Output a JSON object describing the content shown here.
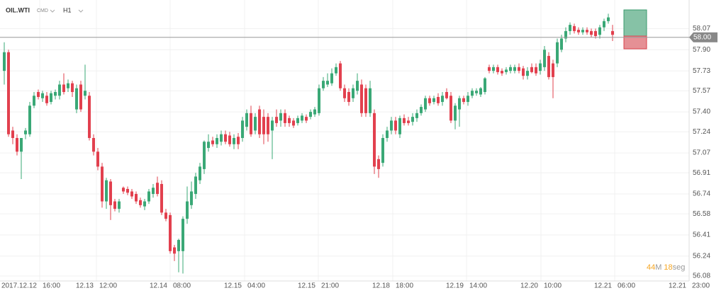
{
  "header": {
    "symbol": "OIL.WTI",
    "market": "CMD",
    "timeframe": "H1"
  },
  "countdown": {
    "minutes": 44,
    "minutes_unit": "M",
    "seconds": 18,
    "seconds_unit": "seg"
  },
  "chart_data": {
    "type": "candlestick",
    "up_color": "#3aa876",
    "down_color": "#e2404e",
    "ylim": [
      56.04,
      58.3
    ],
    "yticks": [
      58.07,
      {
        "value": 57.9,
        "label": "57.90"
      },
      57.73,
      57.57,
      {
        "value": 57.4,
        "label": "57.40"
      },
      57.24,
      57.07,
      56.91,
      56.74,
      56.58,
      56.41,
      56.24,
      56.08
    ],
    "grid": true,
    "current_price": {
      "value": 58,
      "label": "58.00"
    },
    "x_labels": [
      {
        "date": "2017.12.12",
        "time": "16:00"
      },
      {
        "date": "12.13",
        "time": "12:00"
      },
      {
        "date": "12.14",
        "time": "08:00"
      },
      {
        "date": "12.15",
        "time": "04:00"
      },
      {
        "date": "12.15",
        "time": "21:00"
      },
      {
        "date": "12.18",
        "time": "18:00"
      },
      {
        "date": "12.19",
        "time": "14:00"
      },
      {
        "date": "12.20",
        "time": "10:00"
      },
      {
        "date": "12.21",
        "time": "06:00"
      },
      {
        "date": "12.21",
        "time": "23:00"
      }
    ],
    "ohlc": [
      [
        57.73,
        57.96,
        57.62,
        57.88
      ],
      [
        57.88,
        57.9,
        57.2,
        57.22
      ],
      [
        57.25,
        57.28,
        57.14,
        57.19
      ],
      [
        57.19,
        57.22,
        57.05,
        57.08
      ],
      [
        57.08,
        57.19,
        56.86,
        57.19
      ],
      [
        57.22,
        57.27,
        57.18,
        57.25
      ],
      [
        57.22,
        57.48,
        57.2,
        57.45
      ],
      [
        57.45,
        57.56,
        57.43,
        57.53
      ],
      [
        57.56,
        57.58,
        57.5,
        57.52
      ],
      [
        57.51,
        57.57,
        57.48,
        57.55
      ],
      [
        57.53,
        57.56,
        57.45,
        57.47
      ],
      [
        57.48,
        57.57,
        57.46,
        57.55
      ],
      [
        57.53,
        57.58,
        57.5,
        57.56
      ],
      [
        57.53,
        57.65,
        57.5,
        57.62
      ],
      [
        57.62,
        57.71,
        57.54,
        57.56
      ],
      [
        57.59,
        57.66,
        57.56,
        57.63
      ],
      [
        57.63,
        57.65,
        57.52,
        57.56
      ],
      [
        57.42,
        57.62,
        57.39,
        57.59
      ],
      [
        57.62,
        57.65,
        57.4,
        57.42
      ],
      [
        57.53,
        57.78,
        57.5,
        57.57
      ],
      [
        57.53,
        57.56,
        57.17,
        57.19
      ],
      [
        57.19,
        57.22,
        57.05,
        57.08
      ],
      [
        57.08,
        57.11,
        56.93,
        56.96
      ],
      [
        56.96,
        56.99,
        56.63,
        56.68
      ],
      [
        56.68,
        56.87,
        56.62,
        56.85
      ],
      [
        56.84,
        56.86,
        56.53,
        56.65
      ],
      [
        56.68,
        56.7,
        56.6,
        56.62
      ],
      [
        56.62,
        56.7,
        56.59,
        56.68
      ],
      [
        56.79,
        56.8,
        56.74,
        56.76
      ],
      [
        56.78,
        56.8,
        56.73,
        56.75
      ],
      [
        56.76,
        56.78,
        56.7,
        56.72
      ],
      [
        56.74,
        56.76,
        56.66,
        56.68
      ],
      [
        56.69,
        56.71,
        56.63,
        56.65
      ],
      [
        56.64,
        56.7,
        56.61,
        56.68
      ],
      [
        56.68,
        56.78,
        56.66,
        56.76
      ],
      [
        56.74,
        56.82,
        56.71,
        56.79
      ],
      [
        56.83,
        56.88,
        56.72,
        56.74
      ],
      [
        56.82,
        56.85,
        56.57,
        56.59
      ],
      [
        56.59,
        56.62,
        56.52,
        56.54
      ],
      [
        56.57,
        56.59,
        56.26,
        56.28
      ],
      [
        56.31,
        56.33,
        56.2,
        56.26
      ],
      [
        56.28,
        56.38,
        56.11,
        56.37
      ],
      [
        56.28,
        56.56,
        56.1,
        56.54
      ],
      [
        56.54,
        56.8,
        56.5,
        56.68
      ],
      [
        56.65,
        56.84,
        56.62,
        56.76
      ],
      [
        56.74,
        56.91,
        56.7,
        56.88
      ],
      [
        56.85,
        56.99,
        56.82,
        56.96
      ],
      [
        56.94,
        57.17,
        56.9,
        57.16
      ],
      [
        57.11,
        57.22,
        57.08,
        57.16
      ],
      [
        57.17,
        57.2,
        57.12,
        57.14
      ],
      [
        57.14,
        57.22,
        57.11,
        57.19
      ],
      [
        57.16,
        57.25,
        57.13,
        57.22
      ],
      [
        57.22,
        57.25,
        57.14,
        57.16
      ],
      [
        57.21,
        57.24,
        57.12,
        57.14
      ],
      [
        57.14,
        57.22,
        57.1,
        57.19
      ],
      [
        57.2,
        57.23,
        57.1,
        57.14
      ],
      [
        57.19,
        57.36,
        57.16,
        57.33
      ],
      [
        57.28,
        57.42,
        57.25,
        57.39
      ],
      [
        57.39,
        57.45,
        57.2,
        57.22
      ],
      [
        57.25,
        57.39,
        57.22,
        57.36
      ],
      [
        57.42,
        57.45,
        57.19,
        57.22
      ],
      [
        57.36,
        57.42,
        57.14,
        57.22
      ],
      [
        57.36,
        57.39,
        57.16,
        57.22
      ],
      [
        57.25,
        57.36,
        57.02,
        57.33
      ],
      [
        57.36,
        57.42,
        57.28,
        57.31
      ],
      [
        57.33,
        57.42,
        57.28,
        57.39
      ],
      [
        57.39,
        57.42,
        57.28,
        57.31
      ],
      [
        57.35,
        57.37,
        57.28,
        57.31
      ],
      [
        57.33,
        57.35,
        57.27,
        57.29
      ],
      [
        57.31,
        57.37,
        57.29,
        57.35
      ],
      [
        57.33,
        57.39,
        57.31,
        57.37
      ],
      [
        57.36,
        57.38,
        57.31,
        57.33
      ],
      [
        57.36,
        57.42,
        57.34,
        57.4
      ],
      [
        57.38,
        57.44,
        57.36,
        57.42
      ],
      [
        57.39,
        57.62,
        57.37,
        57.59
      ],
      [
        57.59,
        57.68,
        57.57,
        57.65
      ],
      [
        57.62,
        57.71,
        57.6,
        57.65
      ],
      [
        57.63,
        57.75,
        57.61,
        57.71
      ],
      [
        57.71,
        57.79,
        57.69,
        57.76
      ],
      [
        57.79,
        57.81,
        57.57,
        57.59
      ],
      [
        57.59,
        57.62,
        57.48,
        57.51
      ],
      [
        57.56,
        57.59,
        57.45,
        57.48
      ],
      [
        57.51,
        57.62,
        57.48,
        57.59
      ],
      [
        57.57,
        57.71,
        57.54,
        57.65
      ],
      [
        57.62,
        57.66,
        57.36,
        57.39
      ],
      [
        57.59,
        57.62,
        57.36,
        57.39
      ],
      [
        57.39,
        57.65,
        57.36,
        57.59
      ],
      [
        57.39,
        57.42,
        56.9,
        56.96
      ],
      [
        57.02,
        57.05,
        56.87,
        56.94
      ],
      [
        56.99,
        57.22,
        56.96,
        57.19
      ],
      [
        57.19,
        57.28,
        57.16,
        57.25
      ],
      [
        57.25,
        57.36,
        57.22,
        57.33
      ],
      [
        57.33,
        57.36,
        57.22,
        57.25
      ],
      [
        57.22,
        57.37,
        57.19,
        57.35
      ],
      [
        57.35,
        57.38,
        57.29,
        57.31
      ],
      [
        57.33,
        57.36,
        57.29,
        57.31
      ],
      [
        57.32,
        57.39,
        57.29,
        57.36
      ],
      [
        57.35,
        57.42,
        57.32,
        57.39
      ],
      [
        57.39,
        57.46,
        57.37,
        57.44
      ],
      [
        57.42,
        57.53,
        57.4,
        57.51
      ],
      [
        57.51,
        57.53,
        57.45,
        57.47
      ],
      [
        57.48,
        57.53,
        57.46,
        57.51
      ],
      [
        57.52,
        57.55,
        57.45,
        57.47
      ],
      [
        57.48,
        57.56,
        57.45,
        57.53
      ],
      [
        57.56,
        57.59,
        57.5,
        57.51
      ],
      [
        57.53,
        57.56,
        57.31,
        57.33
      ],
      [
        57.33,
        57.47,
        57.26,
        57.45
      ],
      [
        57.42,
        57.53,
        57.28,
        57.51
      ],
      [
        57.51,
        57.53,
        57.46,
        57.48
      ],
      [
        57.48,
        57.56,
        57.45,
        57.53
      ],
      [
        57.53,
        57.59,
        57.51,
        57.57
      ],
      [
        57.55,
        57.59,
        57.53,
        57.57
      ],
      [
        57.54,
        57.6,
        57.52,
        57.59
      ],
      [
        57.56,
        57.68,
        57.54,
        57.67
      ],
      [
        57.76,
        57.78,
        57.71,
        57.73
      ],
      [
        57.73,
        57.78,
        57.71,
        57.76
      ],
      [
        57.76,
        57.78,
        57.7,
        57.72
      ],
      [
        57.73,
        57.75,
        57.69,
        57.71
      ],
      [
        57.72,
        57.76,
        57.7,
        57.74
      ],
      [
        57.73,
        57.78,
        57.71,
        57.76
      ],
      [
        57.73,
        57.78,
        57.71,
        57.76
      ],
      [
        57.76,
        57.79,
        57.71,
        57.73
      ],
      [
        57.75,
        57.77,
        57.66,
        57.69
      ],
      [
        57.69,
        57.76,
        57.66,
        57.73
      ],
      [
        57.76,
        57.79,
        57.71,
        57.72
      ],
      [
        57.76,
        57.79,
        57.69,
        57.71
      ],
      [
        57.73,
        57.82,
        57.7,
        57.79
      ],
      [
        57.76,
        57.93,
        57.73,
        57.9
      ],
      [
        57.85,
        57.88,
        57.66,
        57.68
      ],
      [
        57.79,
        57.82,
        57.51,
        57.68
      ],
      [
        57.79,
        57.99,
        57.76,
        57.96
      ],
      [
        57.9,
        58.02,
        57.88,
        57.99
      ],
      [
        57.99,
        58.08,
        57.96,
        58.05
      ],
      [
        58.05,
        58.12,
        58.02,
        58.1
      ],
      [
        58.09,
        58.11,
        58.03,
        58.05
      ],
      [
        58.06,
        58.08,
        58.02,
        58.04
      ],
      [
        58.04,
        58.08,
        58.02,
        58.06
      ],
      [
        58.06,
        58.08,
        58.02,
        58.04
      ],
      [
        58.05,
        58.07,
        58.0,
        58.02
      ],
      [
        58.05,
        58.07,
        57.99,
        58.01
      ],
      [
        58.02,
        58.1,
        57.99,
        58.08
      ],
      [
        58.08,
        58.15,
        58.05,
        58.13
      ],
      [
        58.13,
        58.19,
        58.11,
        58.16
      ],
      [
        58.05,
        58.1,
        57.97,
        58.02
      ]
    ]
  }
}
